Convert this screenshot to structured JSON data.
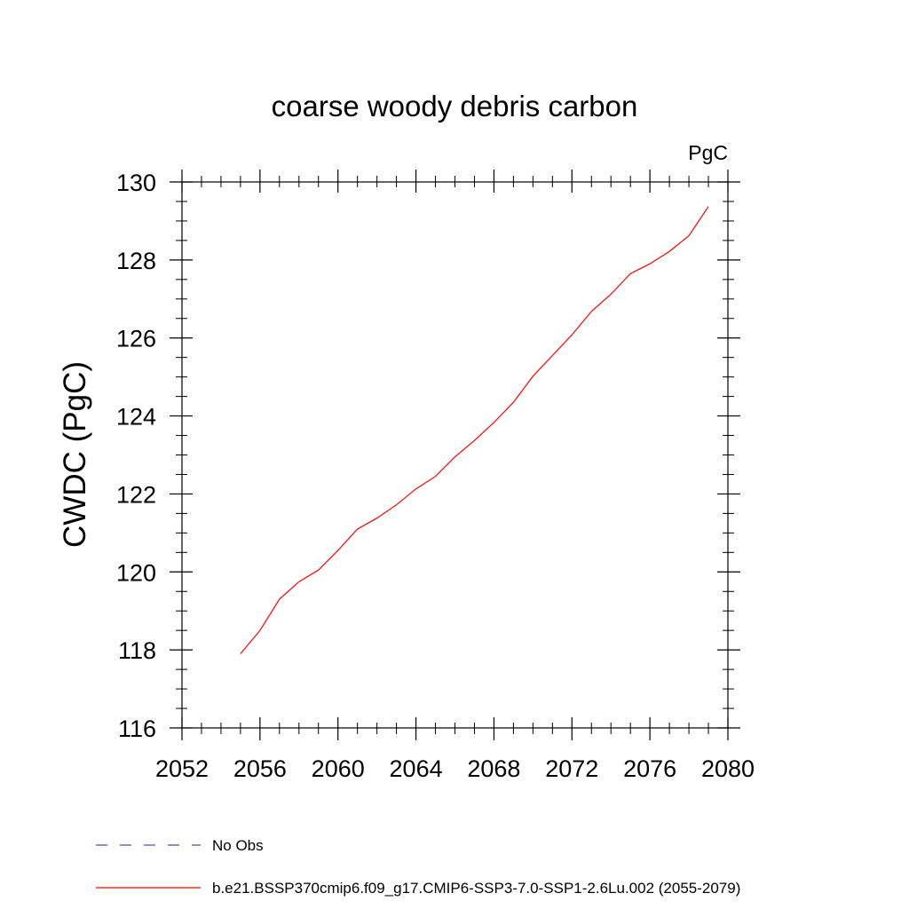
{
  "chart_data": {
    "type": "line",
    "title": "coarse woody debris carbon",
    "units_label": "PgC",
    "ylabel": "CWDC  (PgC)",
    "xlabel": "",
    "xlim": [
      2052,
      2080
    ],
    "ylim": [
      116,
      130
    ],
    "x_ticks": [
      2052,
      2056,
      2060,
      2064,
      2068,
      2072,
      2076,
      2080
    ],
    "x_tick_labels": [
      "2052",
      "2056",
      "2060",
      "2064",
      "2068",
      "2072",
      "2076",
      "2080"
    ],
    "y_ticks": [
      116,
      118,
      120,
      122,
      124,
      126,
      128,
      130
    ],
    "y_tick_labels": [
      "116",
      "118",
      "120",
      "122",
      "124",
      "126",
      "128",
      "130"
    ],
    "grid": false,
    "legend_position": "bottom",
    "series": [
      {
        "name": "No Obs",
        "color": "#5b4fa8",
        "dash": "dashed",
        "x": [],
        "y": []
      },
      {
        "name": "b.e21.BSSP370cmip6.f09_g17.CMIP6-SSP3-7.0-SSP1-2.6Lu.002 (2055-2079)",
        "color": "#ff0000",
        "dash": "solid",
        "x": [
          2055,
          2056,
          2057,
          2058,
          2059,
          2060,
          2061,
          2062,
          2063,
          2064,
          2065,
          2066,
          2067,
          2068,
          2069,
          2070,
          2071,
          2072,
          2073,
          2074,
          2075,
          2076,
          2077,
          2078,
          2079
        ],
        "y": [
          117.9,
          118.5,
          119.3,
          119.75,
          120.05,
          120.55,
          121.1,
          121.38,
          121.72,
          122.13,
          122.45,
          122.95,
          123.37,
          123.83,
          124.35,
          125.02,
          125.55,
          126.08,
          126.68,
          127.12,
          127.65,
          127.9,
          128.22,
          128.62,
          129.37
        ]
      }
    ]
  }
}
